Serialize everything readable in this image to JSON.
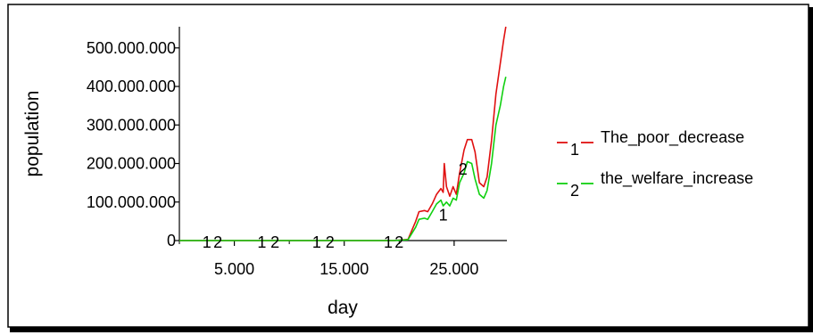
{
  "chart_data": {
    "type": "line",
    "xlabel": "day",
    "ylabel": "population",
    "xlim": [
      0,
      29800
    ],
    "ylim": [
      0,
      555000000
    ],
    "x_ticks": [
      {
        "value": 5000,
        "label": "5.000"
      },
      {
        "value": 15000,
        "label": "15.000"
      },
      {
        "value": 25000,
        "label": "25.000"
      }
    ],
    "x_minor_ticks": [
      0,
      10000,
      20000
    ],
    "y_ticks": [
      {
        "value": 0,
        "label": "0"
      },
      {
        "value": 100000000,
        "label": "100.000.000"
      },
      {
        "value": 200000000,
        "label": "200.000.000"
      },
      {
        "value": 300000000,
        "label": "300.000.000"
      },
      {
        "value": 400000000,
        "label": "400.000.000"
      },
      {
        "value": 500000000,
        "label": "500.000.000"
      }
    ],
    "grid": false,
    "legend_position": "right",
    "series": [
      {
        "name": "The_poor_decrease",
        "marker": "1",
        "color": "#e01010",
        "marker_points": [
          {
            "x": 2500,
            "y": 0
          },
          {
            "x": 7500,
            "y": 0
          },
          {
            "x": 12500,
            "y": 0
          },
          {
            "x": 19000,
            "y": 0
          },
          {
            "x": 24000,
            "y": 70000000
          }
        ],
        "points": [
          {
            "x": 0,
            "y": 0
          },
          {
            "x": 19500,
            "y": 0
          },
          {
            "x": 20800,
            "y": 3000000
          },
          {
            "x": 21500,
            "y": 50000000
          },
          {
            "x": 21800,
            "y": 75000000
          },
          {
            "x": 22300,
            "y": 78000000
          },
          {
            "x": 22600,
            "y": 75000000
          },
          {
            "x": 23000,
            "y": 95000000
          },
          {
            "x": 23400,
            "y": 120000000
          },
          {
            "x": 23800,
            "y": 135000000
          },
          {
            "x": 24000,
            "y": 125000000
          },
          {
            "x": 24100,
            "y": 200000000
          },
          {
            "x": 24300,
            "y": 140000000
          },
          {
            "x": 24600,
            "y": 115000000
          },
          {
            "x": 24900,
            "y": 140000000
          },
          {
            "x": 25200,
            "y": 120000000
          },
          {
            "x": 25500,
            "y": 175000000
          },
          {
            "x": 25900,
            "y": 235000000
          },
          {
            "x": 26200,
            "y": 262000000
          },
          {
            "x": 26600,
            "y": 262000000
          },
          {
            "x": 26900,
            "y": 230000000
          },
          {
            "x": 27300,
            "y": 150000000
          },
          {
            "x": 27700,
            "y": 140000000
          },
          {
            "x": 28000,
            "y": 165000000
          },
          {
            "x": 28400,
            "y": 260000000
          },
          {
            "x": 28800,
            "y": 380000000
          },
          {
            "x": 29200,
            "y": 460000000
          },
          {
            "x": 29500,
            "y": 520000000
          },
          {
            "x": 29700,
            "y": 555000000
          }
        ]
      },
      {
        "name": "the_welfare_increase",
        "marker": "2",
        "color": "#10d010",
        "marker_points": [
          {
            "x": 3500,
            "y": 0
          },
          {
            "x": 8700,
            "y": 0
          },
          {
            "x": 13700,
            "y": 0
          },
          {
            "x": 20000,
            "y": 0
          },
          {
            "x": 25800,
            "y": 190000000
          }
        ],
        "points": [
          {
            "x": 0,
            "y": 0
          },
          {
            "x": 19500,
            "y": 0
          },
          {
            "x": 20800,
            "y": 2000000
          },
          {
            "x": 21500,
            "y": 35000000
          },
          {
            "x": 21800,
            "y": 55000000
          },
          {
            "x": 22300,
            "y": 58000000
          },
          {
            "x": 22600,
            "y": 55000000
          },
          {
            "x": 23000,
            "y": 75000000
          },
          {
            "x": 23400,
            "y": 95000000
          },
          {
            "x": 23800,
            "y": 105000000
          },
          {
            "x": 24000,
            "y": 90000000
          },
          {
            "x": 24300,
            "y": 100000000
          },
          {
            "x": 24600,
            "y": 90000000
          },
          {
            "x": 24900,
            "y": 110000000
          },
          {
            "x": 25200,
            "y": 105000000
          },
          {
            "x": 25500,
            "y": 150000000
          },
          {
            "x": 25900,
            "y": 175000000
          },
          {
            "x": 26200,
            "y": 205000000
          },
          {
            "x": 26600,
            "y": 200000000
          },
          {
            "x": 26900,
            "y": 160000000
          },
          {
            "x": 27300,
            "y": 120000000
          },
          {
            "x": 27700,
            "y": 110000000
          },
          {
            "x": 28000,
            "y": 130000000
          },
          {
            "x": 28400,
            "y": 200000000
          },
          {
            "x": 28800,
            "y": 300000000
          },
          {
            "x": 29200,
            "y": 350000000
          },
          {
            "x": 29500,
            "y": 400000000
          },
          {
            "x": 29700,
            "y": 425000000
          }
        ]
      }
    ]
  }
}
